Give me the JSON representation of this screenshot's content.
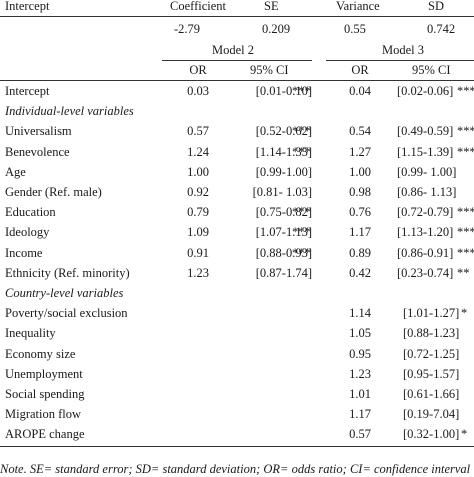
{
  "top_header": {
    "label": "Intercept",
    "col_coefficient": "Coefficient",
    "col_se": "SE",
    "col_variance": "Variance",
    "col_sd": "SD"
  },
  "intercept_values": {
    "coefficient": "-2.79",
    "se": "0.209",
    "variance": "0.55",
    "sd": "0.742"
  },
  "models": {
    "model2": "Model 2",
    "model3": "Model 3"
  },
  "subheader": {
    "or": "OR",
    "ci": "95% CI"
  },
  "rows": [
    {
      "label": "Intercept",
      "or2": "0.03",
      "ci2": "[0.01-0.10]",
      "sig2": "***",
      "or3": "0.04",
      "ci3": "[0.02-0.06]",
      "sig3": "***"
    },
    {
      "section": "Individual-level variables"
    },
    {
      "label": "Universalism",
      "or2": "0.57",
      "ci2": "[0.52-0.62]",
      "sig2": "***",
      "or3": "0.54",
      "ci3": "[0.49-0.59]",
      "sig3": "***"
    },
    {
      "label": "Benevolence",
      "or2": "1.24",
      "ci2": "[1.14-1.35]",
      "sig2": "***",
      "or3": "1.27",
      "ci3": "[1.15-1.39]",
      "sig3": "***"
    },
    {
      "label": "Age",
      "or2": "1.00",
      "ci2": "[0.99-1.00]",
      "sig2": "",
      "or3": "1.00",
      "ci3": "[0.99- 1.00]",
      "sig3": ""
    },
    {
      "label": "Gender (Ref. male)",
      "or2": "0.92",
      "ci2": "[0.81- 1.03]",
      "sig2": "",
      "or3": "0.98",
      "ci3": "[0.86- 1.13]",
      "sig3": ""
    },
    {
      "label": "Education",
      "or2": "0.79",
      "ci2": "[0.75-0.82]",
      "sig2": "***",
      "or3": "0.76",
      "ci3": "[0.72-0.79]",
      "sig3": "***"
    },
    {
      "label": "Ideology",
      "or2": "1.09",
      "ci2": "[1.07-1.13]",
      "sig2": "***",
      "or3": "1.17",
      "ci3": "[1.13-1.20]",
      "sig3": "***"
    },
    {
      "label": "Income",
      "or2": "0.91",
      "ci2": "[0.88-0.93]",
      "sig2": "***",
      "or3": "0.89",
      "ci3": "[0.86-0.91]",
      "sig3": "***"
    },
    {
      "label": "Ethnicity (Ref. minority)",
      "or2": "1.23",
      "ci2": "[0.87-1.74]",
      "sig2": "",
      "or3": "0.42",
      "ci3": "[0.23-0.74]",
      "sig3": "**"
    },
    {
      "section": "Country-level variables"
    },
    {
      "label": "Poverty/social exclusion",
      "or3": "1.14",
      "ci3": "[1.01-1.27]",
      "sig3": "*"
    },
    {
      "label": "Inequality",
      "or3": "1.05",
      "ci3": "[0.88-1.23]",
      "sig3": ""
    },
    {
      "label": "Economy size",
      "or3": "0.95",
      "ci3": "[0.72-1.25]",
      "sig3": ""
    },
    {
      "label": "Unemployment",
      "or3": "1.23",
      "ci3": "[0.95-1.57]",
      "sig3": ""
    },
    {
      "label": "Social spending",
      "or3": "1.01",
      "ci3": "[0.61-1.66]",
      "sig3": ""
    },
    {
      "label": "Migration flow",
      "or3": "1.17",
      "ci3": "[0.19-7.04]",
      "sig3": ""
    },
    {
      "label": "AROPE change",
      "or3": "0.57",
      "ci3": "[0.32-1.00]",
      "sig3": "*"
    }
  ],
  "note": "Note. SE= standard error; SD= standard deviation; OR= odds ratio; CI= confidence interval"
}
